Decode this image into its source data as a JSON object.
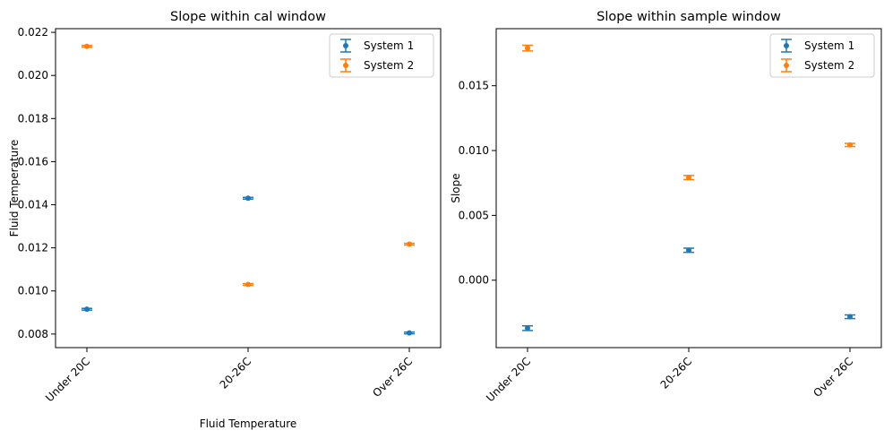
{
  "chart_data": [
    {
      "type": "scatter",
      "title": "Slope within cal window",
      "xlabel": "Fluid Temperature",
      "ylabel": "Fluid Temperature",
      "categories": [
        "Under 20C",
        "20-26C",
        "Over 26C"
      ],
      "ylim": [
        0.00737,
        0.02217
      ],
      "yticks": [
        "0.008",
        "0.010",
        "0.012",
        "0.014",
        "0.016",
        "0.018",
        "0.020",
        "0.022"
      ],
      "ytick_values": [
        0.008,
        0.01,
        0.012,
        0.014,
        0.016,
        0.018,
        0.02,
        0.022
      ],
      "legend_position": "upper right",
      "series": [
        {
          "name": "System 1",
          "color": "#1f77b4",
          "values": [
            0.00915,
            0.0143,
            0.00805
          ],
          "errors": [
            4e-05,
            4e-05,
            4e-05
          ]
        },
        {
          "name": "System 2",
          "color": "#ff7f0e",
          "values": [
            0.02135,
            0.0103,
            0.01217
          ],
          "errors": [
            4e-05,
            4e-05,
            4e-05
          ]
        }
      ]
    },
    {
      "type": "scatter",
      "title": "Slope within sample window",
      "xlabel": "",
      "ylabel": "Slope",
      "categories": [
        "Under 20C",
        "20-26C",
        "Over 26C"
      ],
      "ylim": [
        -0.0052,
        0.0194
      ],
      "yticks": [
        "0.000",
        "0.005",
        "0.010",
        "0.015"
      ],
      "ytick_values": [
        0.0,
        0.005,
        0.01,
        0.015
      ],
      "legend_position": "upper right",
      "series": [
        {
          "name": "System 1",
          "color": "#1f77b4",
          "values": [
            -0.0037,
            0.00231,
            -0.00282
          ],
          "errors": [
            0.00018,
            0.00016,
            0.00014
          ]
        },
        {
          "name": "System 2",
          "color": "#ff7f0e",
          "values": [
            0.0179,
            0.00792,
            0.01043
          ],
          "errors": [
            0.00022,
            0.00016,
            0.00012
          ]
        }
      ]
    }
  ]
}
